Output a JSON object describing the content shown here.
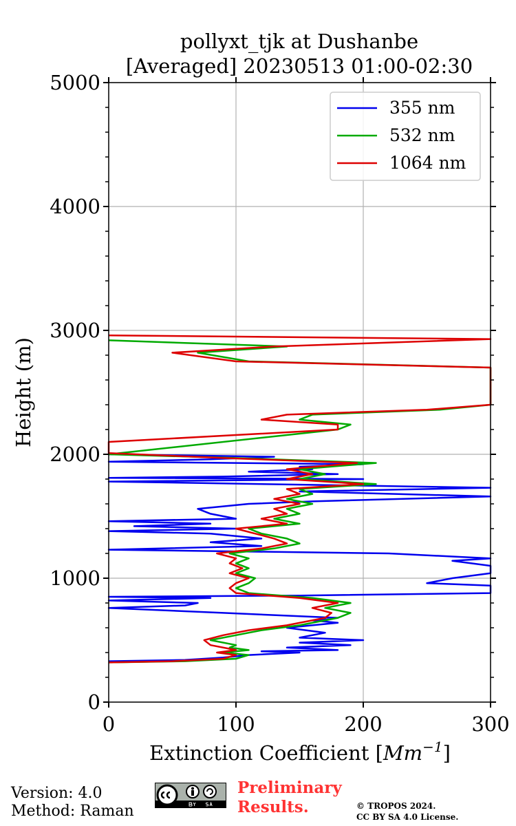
{
  "chart_data": {
    "type": "line",
    "title_line1": "pollyxt_tjk at Dushanbe",
    "title_line2": "[Averaged] 20230513 01:00-02:30",
    "xlabel": "Extinction Coefficient [",
    "xlabel_unit": "Mm",
    "xlabel_exp": "−1",
    "xlabel_close": "]",
    "ylabel": "Height (m)",
    "xlim": [
      0,
      300
    ],
    "ylim": [
      0,
      5000
    ],
    "xticks": [
      0,
      100,
      200,
      300
    ],
    "xtick_labels": [
      "0",
      "100",
      "200",
      "300"
    ],
    "yticks": [
      0,
      1000,
      2000,
      3000,
      4000,
      5000
    ],
    "ytick_labels": [
      "0",
      "1000",
      "2000",
      "3000",
      "4000",
      "5000"
    ],
    "grid": true,
    "legend_position": "top-right",
    "series": [
      {
        "name": "355 nm",
        "color": "#0000ee",
        "points": [
          [
            0,
            330
          ],
          [
            60,
            340
          ],
          [
            90,
            360
          ],
          [
            110,
            380
          ],
          [
            150,
            400
          ],
          [
            120,
            410
          ],
          [
            180,
            420
          ],
          [
            140,
            440
          ],
          [
            190,
            460
          ],
          [
            150,
            480
          ],
          [
            200,
            500
          ],
          [
            150,
            520
          ],
          [
            170,
            560
          ],
          [
            140,
            600
          ],
          [
            180,
            640
          ],
          [
            160,
            660
          ],
          [
            180,
            680
          ],
          [
            90,
            720
          ],
          [
            0,
            760
          ],
          [
            60,
            780
          ],
          [
            70,
            800
          ],
          [
            0,
            820
          ],
          [
            80,
            840
          ],
          [
            0,
            850
          ],
          [
            150,
            860
          ],
          [
            300,
            880
          ],
          [
            300,
            940
          ],
          [
            250,
            960
          ],
          [
            270,
            1000
          ],
          [
            300,
            1040
          ],
          [
            300,
            1100
          ],
          [
            270,
            1140
          ],
          [
            300,
            1160
          ],
          [
            220,
            1200
          ],
          [
            0,
            1230
          ],
          [
            120,
            1260
          ],
          [
            80,
            1290
          ],
          [
            120,
            1320
          ],
          [
            80,
            1360
          ],
          [
            0,
            1380
          ],
          [
            100,
            1400
          ],
          [
            20,
            1420
          ],
          [
            80,
            1440
          ],
          [
            0,
            1460
          ],
          [
            100,
            1480
          ],
          [
            80,
            1520
          ],
          [
            70,
            1560
          ],
          [
            110,
            1600
          ],
          [
            160,
            1620
          ],
          [
            300,
            1660
          ],
          [
            150,
            1700
          ],
          [
            300,
            1730
          ],
          [
            0,
            1780
          ],
          [
            200,
            1800
          ],
          [
            0,
            1810
          ],
          [
            90,
            1820
          ],
          [
            180,
            1840
          ],
          [
            110,
            1860
          ],
          [
            160,
            1880
          ],
          [
            150,
            1900
          ],
          [
            200,
            1920
          ],
          [
            0,
            1940
          ],
          [
            80,
            1960
          ],
          [
            130,
            1980
          ],
          [
            0,
            2000
          ]
        ]
      },
      {
        "name": "532 nm",
        "color": "#00aa00",
        "points": [
          [
            0,
            320
          ],
          [
            60,
            330
          ],
          [
            100,
            350
          ],
          [
            110,
            380
          ],
          [
            90,
            400
          ],
          [
            110,
            420
          ],
          [
            95,
            440
          ],
          [
            100,
            460
          ],
          [
            80,
            500
          ],
          [
            100,
            540
          ],
          [
            120,
            580
          ],
          [
            150,
            620
          ],
          [
            180,
            680
          ],
          [
            190,
            720
          ],
          [
            170,
            760
          ],
          [
            190,
            800
          ],
          [
            160,
            840
          ],
          [
            110,
            880
          ],
          [
            100,
            920
          ],
          [
            110,
            960
          ],
          [
            115,
            1000
          ],
          [
            100,
            1040
          ],
          [
            110,
            1080
          ],
          [
            100,
            1120
          ],
          [
            110,
            1160
          ],
          [
            95,
            1200
          ],
          [
            130,
            1240
          ],
          [
            150,
            1280
          ],
          [
            140,
            1320
          ],
          [
            120,
            1360
          ],
          [
            110,
            1400
          ],
          [
            150,
            1440
          ],
          [
            130,
            1480
          ],
          [
            150,
            1520
          ],
          [
            140,
            1560
          ],
          [
            160,
            1600
          ],
          [
            140,
            1640
          ],
          [
            160,
            1680
          ],
          [
            150,
            1720
          ],
          [
            210,
            1760
          ],
          [
            150,
            1800
          ],
          [
            170,
            1840
          ],
          [
            150,
            1880
          ],
          [
            210,
            1930
          ],
          [
            100,
            1970
          ],
          [
            0,
            2000
          ],
          [
            180,
            2200
          ],
          [
            190,
            2240
          ],
          [
            150,
            2280
          ],
          [
            160,
            2320
          ],
          [
            260,
            2360
          ],
          [
            300,
            2400
          ],
          [
            300,
            2600
          ],
          [
            300,
            2640
          ],
          [
            300,
            2700
          ],
          [
            110,
            2750
          ],
          [
            70,
            2820
          ],
          [
            140,
            2870
          ],
          [
            0,
            2920
          ]
        ]
      },
      {
        "name": "1064 nm",
        "color": "#dd0000",
        "points": [
          [
            0,
            320
          ],
          [
            50,
            330
          ],
          [
            90,
            350
          ],
          [
            100,
            380
          ],
          [
            85,
            400
          ],
          [
            100,
            420
          ],
          [
            80,
            460
          ],
          [
            75,
            500
          ],
          [
            90,
            540
          ],
          [
            110,
            580
          ],
          [
            140,
            620
          ],
          [
            170,
            680
          ],
          [
            175,
            720
          ],
          [
            160,
            760
          ],
          [
            180,
            800
          ],
          [
            150,
            840
          ],
          [
            100,
            880
          ],
          [
            95,
            920
          ],
          [
            100,
            960
          ],
          [
            110,
            1000
          ],
          [
            95,
            1040
          ],
          [
            105,
            1080
          ],
          [
            95,
            1120
          ],
          [
            100,
            1160
          ],
          [
            85,
            1200
          ],
          [
            120,
            1240
          ],
          [
            140,
            1280
          ],
          [
            130,
            1320
          ],
          [
            115,
            1360
          ],
          [
            100,
            1400
          ],
          [
            140,
            1440
          ],
          [
            120,
            1480
          ],
          [
            140,
            1520
          ],
          [
            130,
            1560
          ],
          [
            150,
            1600
          ],
          [
            130,
            1640
          ],
          [
            150,
            1680
          ],
          [
            140,
            1720
          ],
          [
            200,
            1760
          ],
          [
            140,
            1800
          ],
          [
            160,
            1840
          ],
          [
            140,
            1880
          ],
          [
            195,
            1930
          ],
          [
            90,
            1970
          ],
          [
            0,
            2010
          ],
          [
            0,
            2100
          ],
          [
            180,
            2200
          ],
          [
            180,
            2240
          ],
          [
            120,
            2280
          ],
          [
            140,
            2320
          ],
          [
            250,
            2360
          ],
          [
            300,
            2400
          ],
          [
            300,
            2600
          ],
          [
            300,
            2640
          ],
          [
            300,
            2700
          ],
          [
            100,
            2750
          ],
          [
            50,
            2820
          ],
          [
            130,
            2870
          ],
          [
            300,
            2930
          ],
          [
            0,
            2960
          ]
        ]
      }
    ]
  },
  "footer": {
    "version": "Version: 4.0",
    "method": "Method: Raman",
    "preliminary_line1": "Preliminary",
    "preliminary_line2": "Results.",
    "copyright_line1": "© TROPOS 2024.",
    "copyright_line2": "CC BY SA 4.0 License."
  }
}
